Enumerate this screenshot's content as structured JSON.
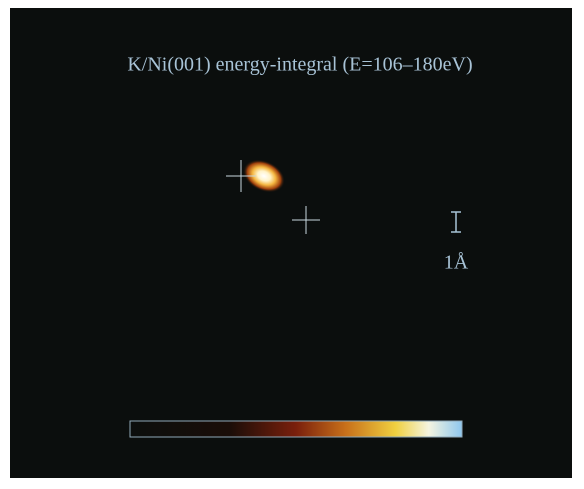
{
  "title": "K/Ni(001) energy-integral (E=106–180eV)",
  "scale_label": "1Å"
}
